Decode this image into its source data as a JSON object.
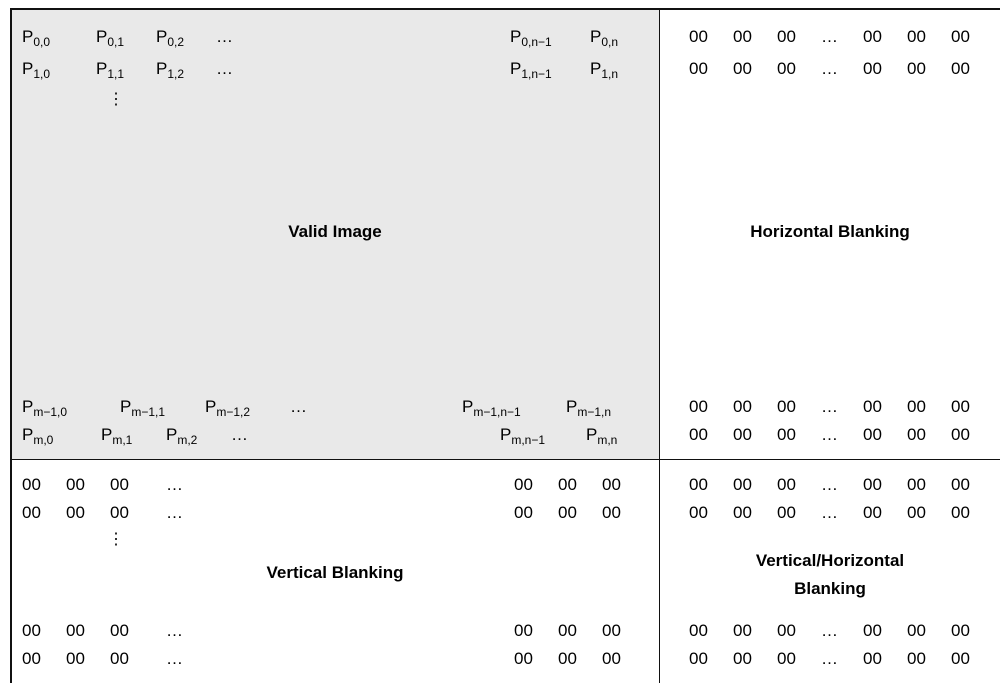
{
  "regions": {
    "valid": "Valid Image",
    "horizontal": "Horizontal Blanking",
    "vertical": "Vertical Blanking",
    "vh_line1": "Vertical/Horizontal",
    "vh_line2": "Blanking"
  },
  "pixel": {
    "letter": "P",
    "row0": [
      "0,0",
      "0,1",
      "0,2"
    ],
    "row0_end": [
      "0,n−1",
      "0,n"
    ],
    "row1": [
      "1,0",
      "1,1",
      "1,2"
    ],
    "row1_end": [
      "1,n−1",
      "1,n"
    ],
    "rowm1": [
      "m−1,0",
      "m−1,1",
      "m−1,2"
    ],
    "rowm1_end": [
      "m−1,n−1",
      "m−1,n"
    ],
    "rowm": [
      "m,0",
      "m,1",
      "m,2"
    ],
    "rowm_end": [
      "m,n−1",
      "m,n"
    ]
  },
  "blank_value": "00",
  "ellipsis": "…",
  "vdots": "⋮"
}
